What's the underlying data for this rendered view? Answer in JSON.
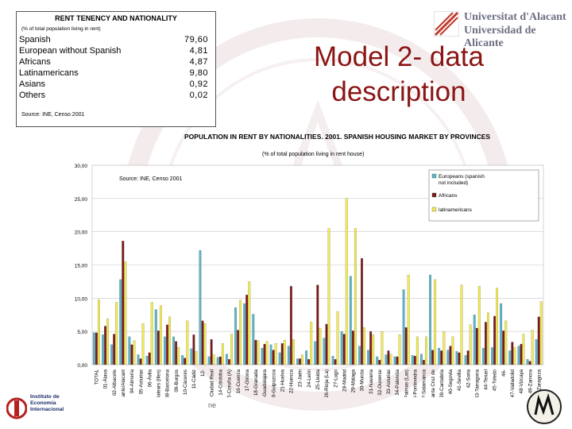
{
  "table": {
    "title": "RENT TENENCY AND NATIONALITY",
    "subtitle": "(% of total population living in rent)",
    "rows": [
      {
        "label": "Spanish",
        "value": "79,60"
      },
      {
        "label": "European without Spanish",
        "value": "4,81"
      },
      {
        "label": "Africans",
        "value": "4,87"
      },
      {
        "label": "Latinamericans",
        "value": "9,80"
      },
      {
        "label": "Asians",
        "value": "0,92"
      },
      {
        "label": "Others",
        "value": "0,02"
      }
    ],
    "source": "Source: INE, Censo 2001"
  },
  "logo": {
    "line1": "Universitat d'Alacant",
    "line2": "Universidad de Alicante",
    "icon": "university-logo-icon",
    "color": "#6c6f82"
  },
  "headline": {
    "line1": "Model 2- data",
    "line2": "description",
    "color": "#8a1515"
  },
  "footer": {
    "institute": [
      "Instituto de",
      "Economía",
      "Internacional"
    ],
    "page_note": "ne"
  },
  "chart_data": {
    "type": "bar",
    "title": "POPULATION IN RENT BY NATIONALITIES. 2001. SPANISH HOUSING MARKET BY PROVINCES",
    "subtitle": "(% of total population living in rent house)",
    "annotation": "Source: INE, Censo 2001",
    "ylim": [
      0,
      30
    ],
    "yticks": [
      "0,00",
      "5,00",
      "10,00",
      "15,00",
      "20,00",
      "25,00",
      "30,00"
    ],
    "legend_position": "top-right",
    "categories": [
      "TOTAL",
      "01-Álava",
      "02-Albacete",
      "03-Alicante/Alacant",
      "04-Almería",
      "05-Asturias",
      "06-Ávila",
      "07-Balears (Illes)",
      "08-Barcelona",
      "09-Burgos",
      "10-Cáceres",
      "11-Cádiz",
      "12-Castellón",
      "13-Ciudad Real",
      "14-Córdoba",
      "15-Coruña (A)",
      "16-Cuenca",
      "17-Girona",
      "18-Granada",
      "19-Guadalajara",
      "20-Guipúzcoa",
      "21-Huelva",
      "22-Huesca",
      "23-Jaén",
      "24-León",
      "25-Lleida",
      "26-Rioja (La)",
      "27-Lugo",
      "28-Madrid",
      "29-Málaga",
      "30-Murcia",
      "31-Navarra",
      "32-Ourense",
      "33-Asturias",
      "34-Palencia",
      "35-Palmas (Las)",
      "36-Pontevedra",
      "37-Salamanca",
      "38-Santa Cruz de Tenerife",
      "39-Cantabria",
      "40-Segovia",
      "41-Sevilla",
      "42-Soria",
      "43-Tarragona",
      "44-Teruel",
      "45-Toledo",
      "46-Valencia",
      "47-Valladolid",
      "48-Vizcaya",
      "49-Zamora",
      "50-Zaragoza"
    ],
    "tick_labels": [
      "TOTAL",
      "01-Álava",
      "02-Albacete",
      "03-Alicante/Alacant",
      "04-Almería",
      "05-Asturias",
      "06-Ávila",
      "07-Balears (Illes)",
      "08-Barcelona",
      "09-Burgos",
      "10-Cáceres",
      "11-Cádiz",
      "12-",
      "13-Ciudad Real",
      "14-Córdoba",
      "15-Coruña (A)",
      "16-Cuenca",
      "17-Girona",
      "18-Granada",
      "19-Guadalajara",
      "20-Guipúzcoa",
      "21-Huelva",
      "22-Huesca",
      "23-Jaén",
      "24-León",
      "25-Lleida",
      "26-Rioja (La)",
      "27-Lugo",
      "28-Madrid",
      "29-Málaga",
      "30-Murcia",
      "31-Navarra",
      "32-Ourense",
      "33-Asturias",
      "34-Palencia",
      "35-Palmas (Las)",
      "36-Pontevedra",
      "37-Salamanca",
      "38-Santa Cruz de",
      "39-Cantabria",
      "40-Segovia",
      "41-Sevilla",
      "42-Soria",
      "43-Tarragona",
      "44-Teruel",
      "45-Toledo",
      "46-",
      "47-Valladolid",
      "48-Vizcaya",
      "49-Zamora",
      "50-Zaragoza"
    ],
    "series": [
      {
        "name": "Europeans (spanish not included)",
        "color": "#5ab4c8",
        "values": [
          4.8,
          4.5,
          3.0,
          12.8,
          4.2,
          1.5,
          1.3,
          8.3,
          4.2,
          4.2,
          1.4,
          2.4,
          17.2,
          1.2,
          1.1,
          1.6,
          8.6,
          9.2,
          7.6,
          2.5,
          3.0,
          1.8,
          2.8,
          0.9,
          2.1,
          3.5,
          4.0,
          1.3,
          5.0,
          13.3,
          2.8,
          2.2,
          1.2,
          1.5,
          1.2,
          11.3,
          1.4,
          1.6,
          13.5,
          2.5,
          2.2,
          2.0,
          1.4,
          7.5,
          2.5,
          2.6,
          9.2,
          2.1,
          2.8,
          0.8,
          3.8
        ]
      },
      {
        "name": "Africans",
        "color": "#7a1a1a",
        "values": [
          4.8,
          5.8,
          4.6,
          18.6,
          3.0,
          0.9,
          1.8,
          5.1,
          6.0,
          3.5,
          1.0,
          4.5,
          6.6,
          3.8,
          1.2,
          0.8,
          5.2,
          10.5,
          3.7,
          3.1,
          2.2,
          3.2,
          11.8,
          0.9,
          0.8,
          12.0,
          6.1,
          0.8,
          4.6,
          5.1,
          16.0,
          5.0,
          0.7,
          2.1,
          1.2,
          5.6,
          1.3,
          0.7,
          2.2,
          2.1,
          2.8,
          1.8,
          2.1,
          5.5,
          6.4,
          7.3,
          5.1,
          3.4,
          3.1,
          0.5,
          7.2
        ]
      },
      {
        "name": "latinamericans",
        "color": "#f2ea52",
        "values": [
          9.8,
          6.9,
          9.4,
          15.5,
          3.6,
          6.2,
          9.4,
          8.9,
          7.2,
          2.6,
          6.6,
          2.0,
          6.2,
          1.5,
          3.2,
          4.6,
          9.7,
          12.5,
          3.6,
          3.5,
          3.2,
          3.7,
          3.8,
          1.5,
          6.4,
          5.5,
          20.5,
          8.0,
          25.0,
          20.5,
          5.6,
          4.5,
          5.0,
          1.6,
          4.5,
          13.5,
          4.2,
          4.2,
          12.8,
          5.0,
          4.2,
          12.0,
          6.0,
          11.8,
          7.8,
          11.5,
          6.6,
          2.6,
          4.6,
          5.2,
          9.5
        ]
      }
    ]
  }
}
